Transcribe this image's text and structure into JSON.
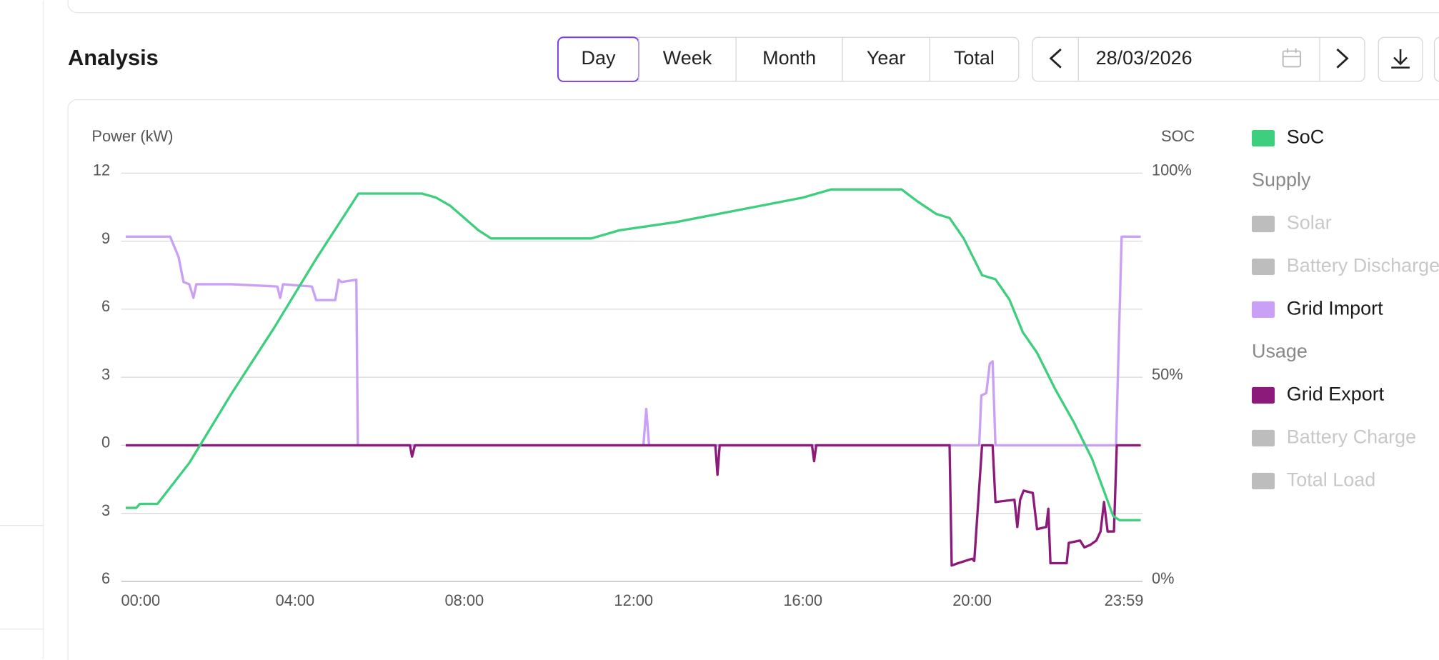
{
  "header": {
    "title": "Analysis"
  },
  "period_tabs": {
    "options": [
      "Day",
      "Week",
      "Month",
      "Year",
      "Total"
    ],
    "selected": 0
  },
  "date_picker": {
    "value": "28/03/2026"
  },
  "chart_data": {
    "type": "line",
    "y_label": "Power (kW)",
    "y2_label": "SOC",
    "xlim": [
      0,
      1439
    ],
    "xticks": [
      {
        "value": 0,
        "label": "00:00"
      },
      {
        "value": 240,
        "label": "04:00"
      },
      {
        "value": 480,
        "label": "08:00"
      },
      {
        "value": 720,
        "label": "12:00"
      },
      {
        "value": 960,
        "label": "16:00"
      },
      {
        "value": 1200,
        "label": "20:00"
      },
      {
        "value": 1439,
        "label": "23:59"
      }
    ],
    "ylim": [
      -6,
      12
    ],
    "yticks": [
      {
        "value": -6,
        "label": "6"
      },
      {
        "value": -3,
        "label": "3"
      },
      0,
      3,
      6,
      9,
      12
    ],
    "y2lim": [
      0,
      100
    ],
    "y2ticks": [
      {
        "value": 0,
        "label": "0%"
      },
      {
        "value": 50,
        "label": "50%"
      },
      {
        "value": 100,
        "label": "100%"
      }
    ],
    "grid": true,
    "legend": "right",
    "series": [
      {
        "name": "SoC",
        "color": "#3ecf7e",
        "axis": "y2",
        "visible": true,
        "x": [
          0,
          15,
          20,
          45,
          90,
          150,
          210,
          270,
          315,
          330,
          420,
          440,
          460,
          480,
          500,
          518,
          660,
          700,
          780,
          840,
          900,
          960,
          1000,
          1100,
          1123,
          1149,
          1168,
          1188,
          1214,
          1233,
          1253,
          1272,
          1292,
          1318,
          1344,
          1370,
          1400,
          1409,
          1439
        ],
        "values": [
          18,
          18,
          19,
          19,
          29,
          46,
          62,
          79,
          91,
          95,
          95,
          94,
          92,
          89,
          86,
          84,
          84,
          86,
          88,
          90,
          92,
          94,
          96,
          96,
          93,
          90,
          89,
          84,
          75,
          74,
          69,
          61,
          56,
          47,
          39,
          30,
          16,
          15,
          15
        ]
      },
      {
        "name": "Solar",
        "color": "#bdbdbd",
        "group": "Supply",
        "visible": false
      },
      {
        "name": "Battery Discharge",
        "color": "#bdbdbd",
        "group": "Supply",
        "visible": false
      },
      {
        "name": "Grid Import",
        "color": "#c9a0f5",
        "group": "Supply",
        "visible": true,
        "x": [
          0,
          63,
          75,
          82,
          90,
          96,
          100,
          150,
          215,
          219,
          223,
          264,
          270,
          297,
          302,
          306,
          327,
          329,
          734,
          738,
          742,
          1210,
          1213,
          1220,
          1225,
          1229,
          1233,
          1404,
          1412,
          1439
        ],
        "values": [
          9.2,
          9.2,
          8.3,
          7.2,
          7.1,
          6.5,
          7.1,
          7.1,
          7.0,
          6.5,
          7.1,
          7.0,
          6.4,
          6.4,
          7.3,
          7.2,
          7.3,
          0,
          0,
          1.6,
          0,
          0,
          2.2,
          2.3,
          3.6,
          3.7,
          0,
          0,
          9.2,
          9.2
        ]
      },
      {
        "name": "Grid Export",
        "color": "#8b1a7a",
        "group": "Usage",
        "visible": true,
        "x": [
          0,
          403,
          406,
          410,
          836,
          839,
          842,
          973,
          976,
          979,
          1168,
          1171,
          1180,
          1200,
          1203,
          1214,
          1229,
          1233,
          1260,
          1264,
          1268,
          1273,
          1286,
          1292,
          1305,
          1308,
          1311,
          1334,
          1337,
          1353,
          1359,
          1367,
          1376,
          1382,
          1387,
          1392,
          1401,
          1405,
          1439
        ],
        "values": [
          0,
          0,
          -0.5,
          0,
          0,
          -1.3,
          0,
          0,
          -0.7,
          0,
          0,
          -5.3,
          -5.2,
          -5.0,
          -5.1,
          0,
          0,
          -2.5,
          -2.4,
          -3.6,
          -2.4,
          -2.0,
          -2.1,
          -3.7,
          -3.6,
          -2.8,
          -5.2,
          -5.2,
          -4.3,
          -4.2,
          -4.5,
          -4.4,
          -4.2,
          -3.8,
          -2.5,
          -3.8,
          -3.8,
          0,
          0
        ]
      },
      {
        "name": "Battery Charge",
        "color": "#bdbdbd",
        "group": "Usage",
        "visible": false
      },
      {
        "name": "Total Load",
        "color": "#bdbdbd",
        "group": "Usage",
        "visible": false
      }
    ]
  }
}
